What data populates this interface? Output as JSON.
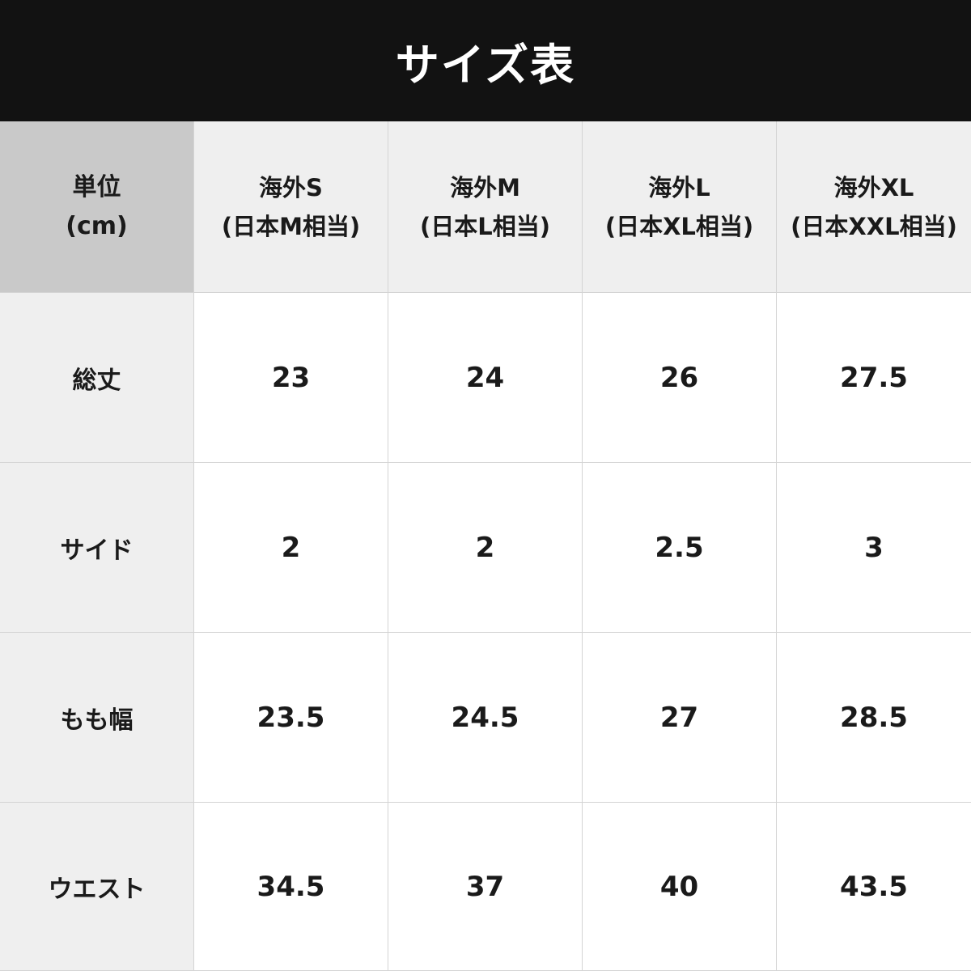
{
  "title": "サイズ表",
  "corner": {
    "line1": "単位",
    "line2": "(cm)"
  },
  "columns": [
    {
      "line1": "海外S",
      "line2": "(日本M相当)"
    },
    {
      "line1": "海外M",
      "line2": "(日本L相当)"
    },
    {
      "line1": "海外L",
      "line2": "(日本XL相当)"
    },
    {
      "line1": "海外XL",
      "line2": "(日本XXL相当)"
    }
  ],
  "rows": [
    {
      "label": "総丈",
      "values": [
        "23",
        "24",
        "26",
        "27.5"
      ]
    },
    {
      "label": "サイド",
      "values": [
        "2",
        "2",
        "2.5",
        "3"
      ]
    },
    {
      "label": "もも幅",
      "values": [
        "23.5",
        "24.5",
        "27",
        "28.5"
      ]
    },
    {
      "label": "ウエスト",
      "values": [
        "34.5",
        "37",
        "40",
        "43.5"
      ]
    }
  ]
}
